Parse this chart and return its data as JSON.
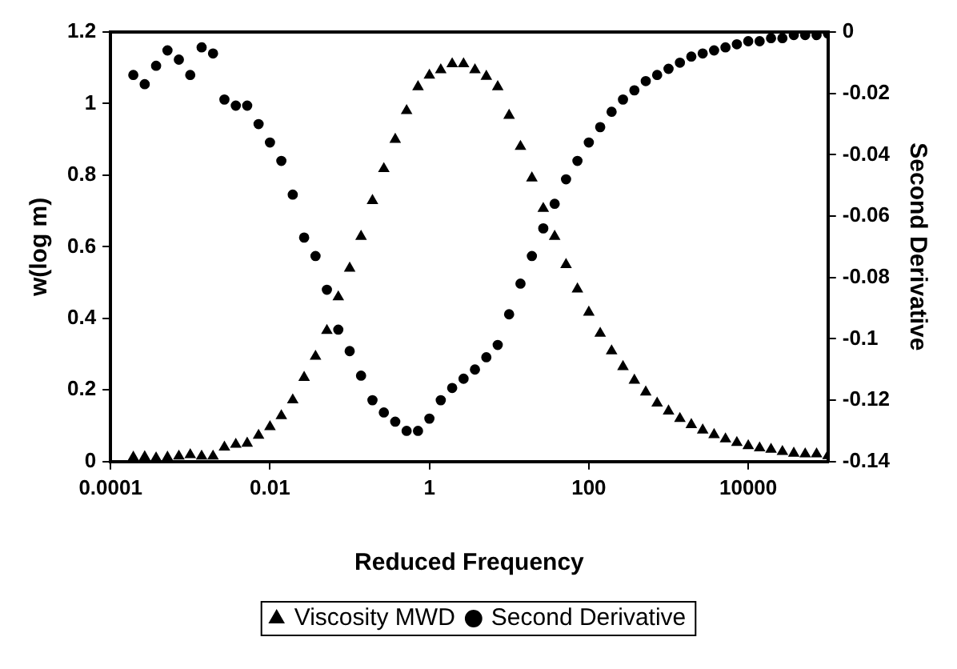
{
  "chart_data": {
    "type": "scatter",
    "xlabel": "Reduced Frequency",
    "ylabel": "w(log m)",
    "y2label": "Second Derivative",
    "log": "x",
    "grid": false,
    "legend": "bottom",
    "x": [
      0.0001931,
      0.0002683,
      0.0003728,
      0.0005179,
      0.0007197,
      0.001,
      0.001389,
      0.001931,
      0.002683,
      0.003728,
      0.005179,
      0.007197,
      0.01,
      0.01389,
      0.01931,
      0.02683,
      0.03728,
      0.05179,
      0.07197,
      0.1,
      0.1389,
      0.1931,
      0.2683,
      0.3728,
      0.5179,
      0.7197,
      1,
      1.389,
      1.931,
      2.683,
      3.728,
      5.179,
      7.197,
      10,
      13.89,
      19.31,
      26.83,
      37.28,
      51.79,
      71.97,
      100,
      138.9,
      193.1,
      268.3,
      372.8,
      517.9,
      719.7,
      1000,
      1389,
      1931,
      2683,
      3728,
      5179,
      7197,
      10000,
      13890,
      19310,
      26830,
      37280,
      51790,
      71970,
      100000
    ],
    "xlim": [
      0.0001,
      100000
    ],
    "xticks": [
      0.0001,
      0.01,
      1,
      100,
      10000
    ],
    "ylim": [
      0,
      1.2
    ],
    "yticks": [
      0,
      0.2,
      0.4,
      0.6,
      0.8,
      1,
      1.2
    ],
    "y2lim": [
      -0.14,
      0
    ],
    "y2ticks": [
      -0.14,
      -0.12,
      -0.1,
      -0.08,
      -0.06,
      -0.04,
      -0.02,
      0
    ],
    "series": [
      {
        "name": "Viscosity MWD",
        "marker": "triangle",
        "color": "#000000",
        "values": [
          0.012,
          0.013,
          0.01,
          0.012,
          0.015,
          0.019,
          0.015,
          0.015,
          0.04,
          0.048,
          0.051,
          0.073,
          0.097,
          0.128,
          0.172,
          0.235,
          0.294,
          0.366,
          0.46,
          0.54,
          0.629,
          0.729,
          0.818,
          0.9,
          0.98,
          1.047,
          1.079,
          1.094,
          1.111,
          1.111,
          1.094,
          1.076,
          1.047,
          0.967,
          0.88,
          0.792,
          0.707,
          0.629,
          0.55,
          0.482,
          0.417,
          0.358,
          0.309,
          0.265,
          0.227,
          0.194,
          0.163,
          0.141,
          0.12,
          0.103,
          0.088,
          0.075,
          0.063,
          0.053,
          0.044,
          0.038,
          0.034,
          0.028,
          0.023,
          0.021,
          0.021,
          0.016
        ]
      },
      {
        "name": "Second Derivative",
        "marker": "circle",
        "axis": "y2",
        "color": "#000000",
        "values": [
          -0.014,
          -0.017,
          -0.011,
          -0.006,
          -0.009,
          -0.014,
          -0.005,
          -0.007,
          -0.022,
          -0.024,
          -0.024,
          -0.03,
          -0.036,
          -0.042,
          -0.053,
          -0.067,
          -0.073,
          -0.084,
          -0.097,
          -0.104,
          -0.112,
          -0.12,
          -0.124,
          -0.127,
          -0.13,
          -0.13,
          -0.126,
          -0.12,
          -0.116,
          -0.113,
          -0.11,
          -0.106,
          -0.102,
          -0.092,
          -0.082,
          -0.073,
          -0.064,
          -0.056,
          -0.048,
          -0.042,
          -0.036,
          -0.031,
          -0.026,
          -0.022,
          -0.019,
          -0.016,
          -0.014,
          -0.012,
          -0.01,
          -0.008,
          -0.007,
          -0.006,
          -0.005,
          -0.004,
          -0.003,
          -0.003,
          -0.002,
          -0.002,
          -0.001,
          -0.001,
          -0.001,
          -0.0005
        ]
      }
    ]
  }
}
